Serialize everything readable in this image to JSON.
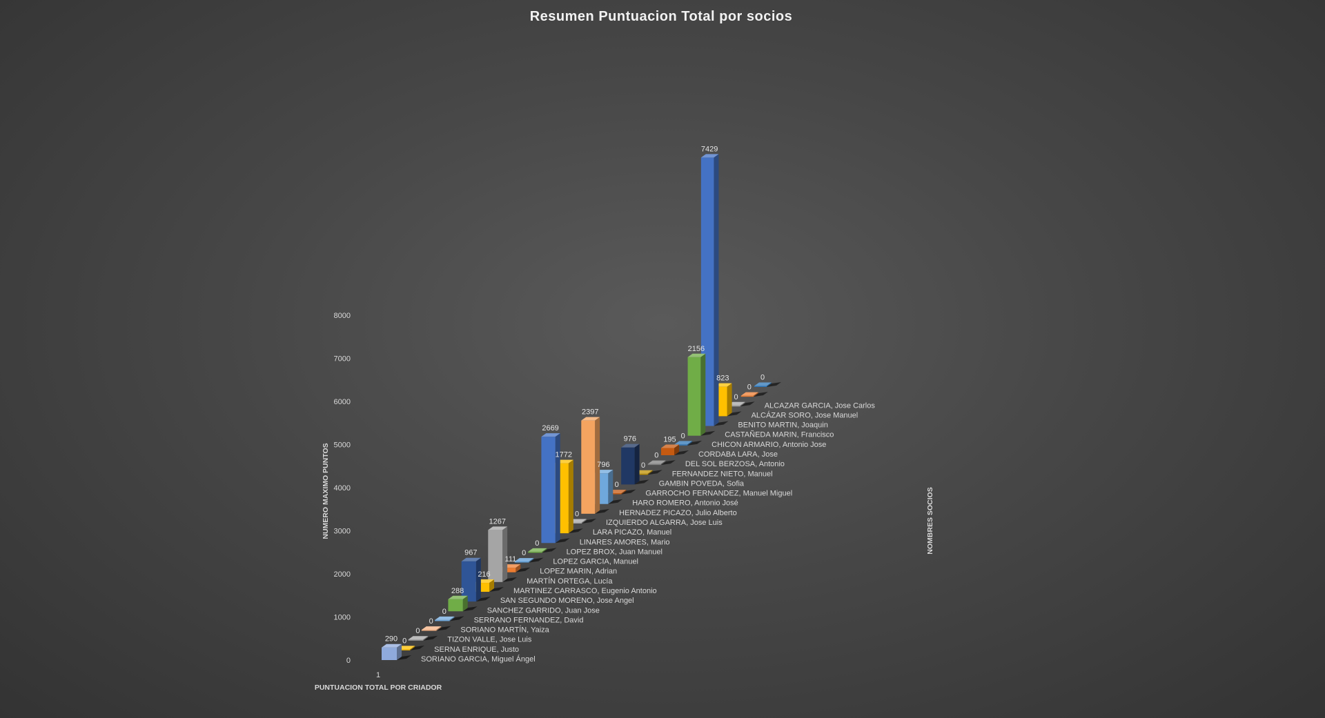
{
  "chart_data": {
    "type": "bar",
    "title": "Resumen Puntuacion Total por socios",
    "ylabel": "NUMERO MAXIMO PUNTOS",
    "zlabel": "NOMBRES SOCIOS",
    "xlabel": "PUNTUACION TOTAL POR CRIADOR",
    "x_categories": [
      "1"
    ],
    "ylim": [
      0,
      8000
    ],
    "yticks": [
      0,
      1000,
      2000,
      3000,
      4000,
      5000,
      6000,
      7000,
      8000
    ],
    "series": [
      {
        "name": "SORIANO GARCIA, Miguel Ángel",
        "values": [
          290
        ],
        "color": "#8faadc"
      },
      {
        "name": "SERNA ENRIQUE, Justo",
        "values": [
          0
        ],
        "color": "#ffc000"
      },
      {
        "name": "TIZON VALLE, Jose Luis",
        "values": [
          0
        ],
        "color": "#a5a5a5"
      },
      {
        "name": "SORIANO MARTÍN, Yaiza",
        "values": [
          0
        ],
        "color": "#f4b183"
      },
      {
        "name": "SERRANO FERNANDEZ, David",
        "values": [
          0
        ],
        "color": "#6fa8dc"
      },
      {
        "name": "SANCHEZ GARRIDO, Juan Jose",
        "values": [
          288
        ],
        "color": "#70ad47"
      },
      {
        "name": "SAN SEGUNDO MORENO, Jose Angel",
        "values": [
          967
        ],
        "color": "#2f5597"
      },
      {
        "name": "MARTINEZ CARRASCO, Eugenio Antonio",
        "values": [
          216
        ],
        "color": "#ffc000"
      },
      {
        "name": "MARTÍN ORTEGA, Lucía",
        "values": [
          1267
        ],
        "color": "#a5a5a5"
      },
      {
        "name": "LOPEZ MARIN, Adrian",
        "values": [
          111
        ],
        "color": "#ed7d31"
      },
      {
        "name": "LOPEZ GARCIA, Manuel",
        "values": [
          0
        ],
        "color": "#5b9bd5"
      },
      {
        "name": "LOPEZ BROX, Juan Manuel",
        "values": [
          0
        ],
        "color": "#70ad47"
      },
      {
        "name": "LINARES AMORES, Mario",
        "values": [
          2669
        ],
        "color": "#4472c4"
      },
      {
        "name": "LARA PICAZO, Manuel",
        "values": [
          1772
        ],
        "color": "#ffc000"
      },
      {
        "name": "IZQUIERDO ALGARRA, Jose Luis",
        "values": [
          0
        ],
        "color": "#a5a5a5"
      },
      {
        "name": "HERNADEZ PICAZO, Julio Alberto",
        "values": [
          2397
        ],
        "color": "#f4a460"
      },
      {
        "name": "HARO ROMERO, Antonio José",
        "values": [
          796
        ],
        "color": "#6fa8dc"
      },
      {
        "name": "GARROCHO FERNANDEZ, Manuel Miguel",
        "values": [
          0
        ],
        "color": "#c55a11"
      },
      {
        "name": "GAMBIN POVEDA, Sofia",
        "values": [
          976
        ],
        "color": "#203864"
      },
      {
        "name": "FERNANDEZ NIETO, Manuel",
        "values": [
          0
        ],
        "color": "#bf9000"
      },
      {
        "name": "DEL SOL BERZOSA, Antonio",
        "values": [
          0
        ],
        "color": "#7f7f7f"
      },
      {
        "name": "CORDABA LARA, Jose",
        "values": [
          195
        ],
        "color": "#c55a11"
      },
      {
        "name": "CHICON ARMARIO, Antonio Jose",
        "values": [
          0
        ],
        "color": "#2e75b6"
      },
      {
        "name": "CASTAÑEDA MARIN, Francisco",
        "values": [
          2156
        ],
        "color": "#70ad47"
      },
      {
        "name": "BENITO MARTIN, Joaquin",
        "values": [
          7429
        ],
        "color": "#4472c4"
      },
      {
        "name": "ALCÁZAR SORO, Jose Manuel",
        "values": [
          823
        ],
        "color": "#ffc000"
      },
      {
        "name": "ALCAZAR GARCIA, Jose Carlos",
        "values": [
          0
        ],
        "color": "#a5a5a5"
      },
      {
        "name": "",
        "values": [
          0
        ],
        "color": "#ed7d31"
      },
      {
        "name": "",
        "values": [
          0
        ],
        "color": "#2e75b6"
      }
    ],
    "legend": "none",
    "grid": false
  }
}
